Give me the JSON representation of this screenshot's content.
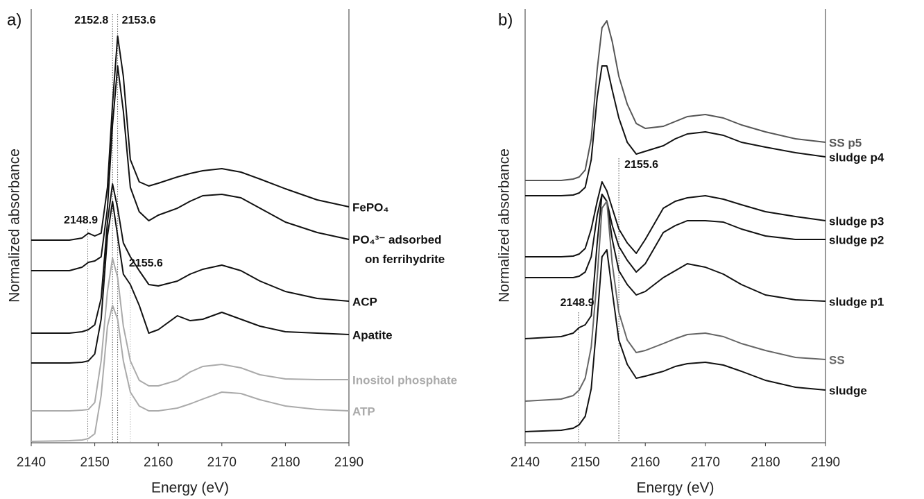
{
  "chart_data": [
    {
      "type": "line",
      "panel_label": "a)",
      "xlabel": "Energy (eV)",
      "ylabel": "Normalized absorbance",
      "xlim": [
        2140,
        2190
      ],
      "xticks": [
        2140,
        2150,
        2160,
        2170,
        2180,
        2190
      ],
      "ylim": [
        0,
        6.25
      ],
      "x": [
        2140,
        2146,
        2148,
        2149,
        2150,
        2151,
        2152,
        2152.8,
        2153.6,
        2154.5,
        2155.6,
        2157,
        2158.5,
        2160,
        2163,
        2165,
        2167,
        2170,
        2173,
        2176,
        2180,
        2185,
        2190
      ],
      "ref_lines": [
        2152.8,
        2153.6,
        2148.9,
        2155.6
      ],
      "series": [
        {
          "name": "FePO₄",
          "color": "#111111",
          "values": [
            2.92,
            2.92,
            2.95,
            3.02,
            2.98,
            3.02,
            3.68,
            4.88,
            5.86,
            5.28,
            4.08,
            3.76,
            3.7,
            3.74,
            3.83,
            3.88,
            3.92,
            3.95,
            3.9,
            3.8,
            3.66,
            3.5,
            3.4
          ]
        },
        {
          "name": "PO₄³⁻ adsorbed on ferrihydrite",
          "color": "#111111",
          "values": [
            2.48,
            2.48,
            2.53,
            2.6,
            2.62,
            2.68,
            3.38,
            4.58,
            5.43,
            4.78,
            3.68,
            3.33,
            3.2,
            3.28,
            3.38,
            3.48,
            3.56,
            3.58,
            3.53,
            3.38,
            3.18,
            3.03,
            2.93
          ]
        },
        {
          "name": "ACP",
          "color": "#111111",
          "values": [
            1.58,
            1.58,
            1.6,
            1.63,
            1.7,
            2.08,
            3.18,
            3.73,
            3.38,
            2.88,
            2.68,
            2.48,
            2.28,
            2.26,
            2.33,
            2.43,
            2.5,
            2.56,
            2.48,
            2.33,
            2.18,
            2.08,
            2.04
          ]
        },
        {
          "name": "Apatite",
          "color": "#111111",
          "values": [
            1.15,
            1.15,
            1.16,
            1.18,
            1.28,
            1.78,
            2.98,
            3.48,
            2.98,
            2.43,
            2.28,
            1.98,
            1.58,
            1.63,
            1.83,
            1.76,
            1.78,
            1.88,
            1.78,
            1.68,
            1.6,
            1.58,
            1.56
          ]
        },
        {
          "name": "Inositol phosphate",
          "color": "#aaaaaa",
          "values": [
            0.46,
            0.46,
            0.47,
            0.48,
            0.58,
            1.18,
            2.18,
            2.66,
            2.38,
            1.68,
            1.18,
            0.9,
            0.82,
            0.82,
            0.9,
            1.02,
            1.1,
            1.13,
            1.08,
            0.98,
            0.92,
            0.91,
            0.91
          ]
        },
        {
          "name": "ATP",
          "color": "#aaaaaa",
          "values": [
            0.02,
            0.03,
            0.04,
            0.06,
            0.13,
            0.68,
            1.68,
            1.98,
            1.78,
            1.18,
            0.73,
            0.53,
            0.46,
            0.46,
            0.5,
            0.56,
            0.63,
            0.73,
            0.71,
            0.62,
            0.53,
            0.48,
            0.46
          ]
        }
      ]
    },
    {
      "type": "line",
      "panel_label": "b)",
      "xlabel": "Energy (eV)",
      "ylabel": "Normalized absorbance",
      "xlim": [
        2140,
        2190
      ],
      "xticks": [
        2140,
        2150,
        2160,
        2170,
        2180,
        2190
      ],
      "ylim": [
        0,
        6.25
      ],
      "x": [
        2140,
        2146,
        2148,
        2149,
        2150,
        2151,
        2152,
        2152.8,
        2153.6,
        2154.5,
        2155.6,
        2157,
        2158.5,
        2160,
        2163,
        2165,
        2167,
        2170,
        2173,
        2176,
        2180,
        2185,
        2190
      ],
      "ref_lines": [
        2155.6,
        2148.9
      ],
      "series": [
        {
          "name": "SS p5",
          "color": "#555555",
          "values": [
            3.78,
            3.78,
            3.8,
            3.83,
            3.93,
            4.38,
            5.38,
            5.98,
            6.08,
            5.78,
            5.28,
            4.88,
            4.6,
            4.53,
            4.56,
            4.63,
            4.7,
            4.73,
            4.68,
            4.58,
            4.48,
            4.38,
            4.33
          ]
        },
        {
          "name": "sludge p4",
          "color": "#111111",
          "values": [
            3.56,
            3.56,
            3.57,
            3.6,
            3.68,
            4.08,
            4.98,
            5.43,
            5.43,
            5.08,
            4.68,
            4.33,
            4.16,
            4.2,
            4.28,
            4.38,
            4.45,
            4.48,
            4.43,
            4.33,
            4.26,
            4.18,
            4.12
          ]
        },
        {
          "name": "sludge p3",
          "color": "#111111",
          "values": [
            2.68,
            2.68,
            2.69,
            2.72,
            2.8,
            3.08,
            3.48,
            3.76,
            3.63,
            3.38,
            3.08,
            2.88,
            2.73,
            2.93,
            3.38,
            3.48,
            3.53,
            3.56,
            3.51,
            3.43,
            3.33,
            3.26,
            3.2
          ]
        },
        {
          "name": "sludge p2",
          "color": "#111111",
          "values": [
            2.38,
            2.38,
            2.38,
            2.4,
            2.46,
            2.68,
            3.28,
            3.58,
            3.48,
            3.13,
            2.83,
            2.63,
            2.46,
            2.58,
            3.03,
            3.13,
            3.2,
            3.2,
            3.18,
            3.08,
            2.98,
            2.93,
            2.93
          ]
        },
        {
          "name": "sludge p1",
          "color": "#111111",
          "values": [
            1.5,
            1.53,
            1.58,
            1.66,
            1.7,
            1.83,
            2.88,
            3.58,
            3.48,
            2.93,
            2.48,
            2.28,
            2.13,
            2.18,
            2.38,
            2.48,
            2.58,
            2.53,
            2.43,
            2.28,
            2.13,
            2.06,
            2.04
          ]
        },
        {
          "name": "SS",
          "color": "#666666",
          "values": [
            0.6,
            0.63,
            0.68,
            0.76,
            0.93,
            1.38,
            2.38,
            3.38,
            3.48,
            2.58,
            1.88,
            1.48,
            1.3,
            1.33,
            1.43,
            1.5,
            1.56,
            1.58,
            1.53,
            1.43,
            1.33,
            1.23,
            1.2
          ]
        },
        {
          "name": "sludge",
          "color": "#111111",
          "values": [
            0.16,
            0.18,
            0.21,
            0.26,
            0.38,
            0.78,
            1.78,
            2.68,
            2.78,
            2.18,
            1.48,
            1.13,
            0.93,
            0.96,
            1.03,
            1.1,
            1.14,
            1.16,
            1.12,
            1.03,
            0.9,
            0.8,
            0.76
          ]
        }
      ]
    }
  ]
}
